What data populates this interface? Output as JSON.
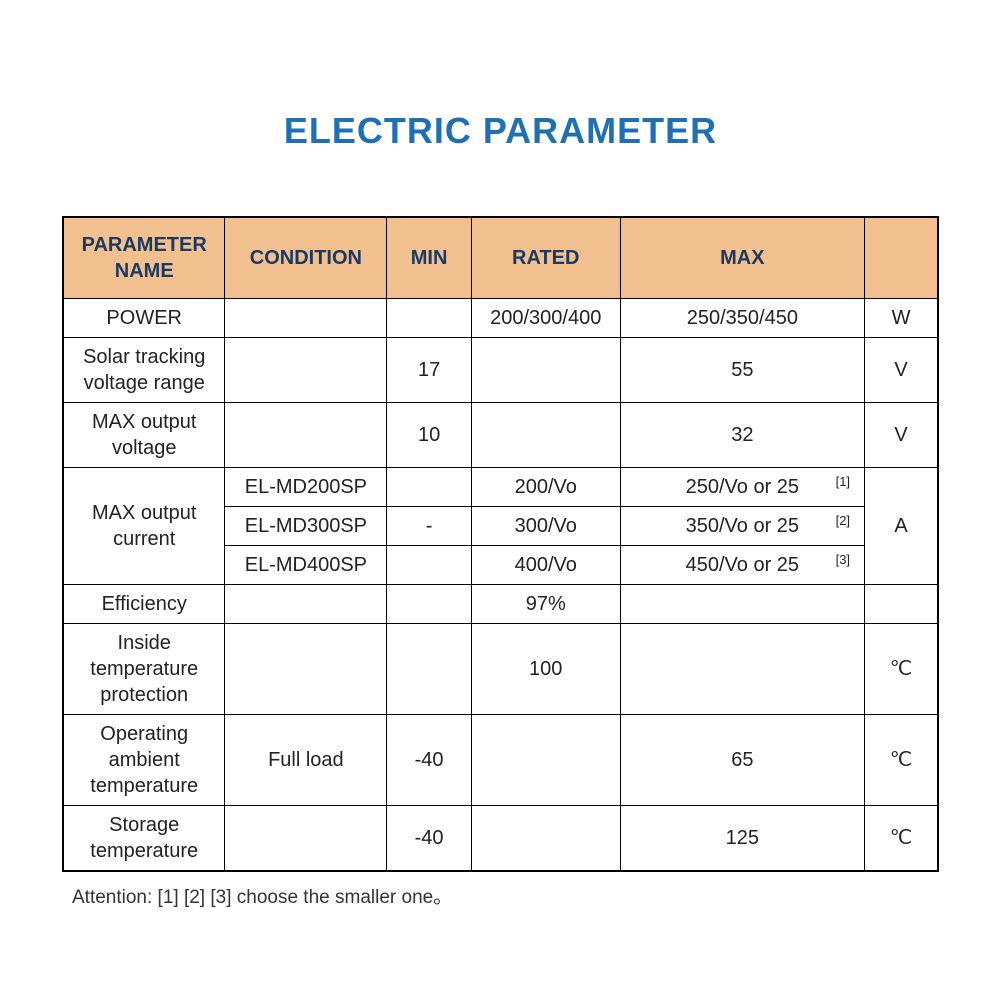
{
  "title": "ELECTRIC PARAMETER",
  "colors": {
    "title_color": "#1f6fb5",
    "header_bg": "#f1c08e",
    "header_text": "#1a3a66",
    "border": "#000000",
    "background": "#ffffff",
    "body_text": "#222222"
  },
  "columns": {
    "name": "PARAMETER NAME",
    "cond": "CONDITION",
    "min": "MIN",
    "rated": "RATED",
    "max": "MAX",
    "unit": ""
  },
  "rows": {
    "power": {
      "name": "POWER",
      "cond": "",
      "min": "",
      "rated": "200/300/400",
      "max": "250/350/450",
      "unit": "W"
    },
    "solar_track": {
      "name": "Solar tracking voltage range",
      "cond": "",
      "min": "17",
      "rated": "",
      "max": "55",
      "unit": "V"
    },
    "max_out_v": {
      "name": "MAX output voltage",
      "cond": "",
      "min": "10",
      "rated": "",
      "max": "32",
      "unit": "V"
    },
    "max_out_i": {
      "name": "MAX output current",
      "sub": [
        {
          "cond": "EL-MD200SP",
          "min": "",
          "rated": "200/Vo",
          "max": "250/Vo or 25",
          "note": "[1]"
        },
        {
          "cond": "EL-MD300SP",
          "min": "-",
          "rated": "300/Vo",
          "max": "350/Vo or 25",
          "note": "[2]"
        },
        {
          "cond": "EL-MD400SP",
          "min": "",
          "rated": "400/Vo",
          "max": "450/Vo or 25",
          "note": "[3]"
        }
      ],
      "unit": "A"
    },
    "efficiency": {
      "name": "Efficiency",
      "cond": "",
      "min": "",
      "rated": "97%",
      "max": "",
      "unit": ""
    },
    "inside_temp": {
      "name": "Inside temperature protection",
      "cond": "",
      "min": "",
      "rated": "100",
      "max": "",
      "unit": "℃"
    },
    "op_temp": {
      "name": "Operating ambient temperature",
      "cond": "Full load",
      "min": "-40",
      "rated": "",
      "max": "65",
      "unit": "℃"
    },
    "storage_temp": {
      "name": "Storage temperature",
      "cond": "",
      "min": "-40",
      "rated": "",
      "max": "125",
      "unit": "℃"
    }
  },
  "footnote": "Attention: [1]   [2]   [3] choose the smaller one。"
}
